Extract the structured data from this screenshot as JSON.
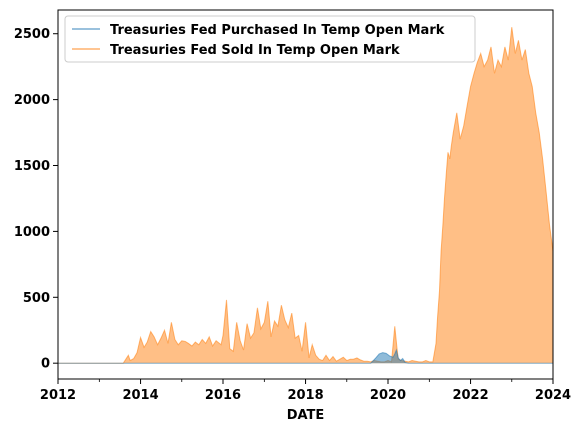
{
  "chart_data": {
    "type": "area",
    "xlabel": "DATE",
    "ylabel": "",
    "xlim": [
      "2012-01-01",
      "2024-01-01"
    ],
    "ylim": [
      -120,
      2680
    ],
    "x_ticks": [
      "2012",
      "2014",
      "2016",
      "2018",
      "2020",
      "2022",
      "2024"
    ],
    "y_ticks": [
      0,
      500,
      1000,
      1500,
      2000,
      2500
    ],
    "grid": false,
    "legend_position": "top-left",
    "series": [
      {
        "name": "Treasuries Fed Purchased In Temp Open Mark",
        "color": "#1f77b4",
        "x": [
          "2012-01-01",
          "2019-08-01",
          "2019-09-15",
          "2019-10-15",
          "2019-11-15",
          "2019-12-15",
          "2020-01-15",
          "2020-02-15",
          "2020-03-01",
          "2020-03-15",
          "2020-04-01",
          "2020-04-20",
          "2020-05-10",
          "2020-06-01",
          "2020-07-01",
          "2024-01-01"
        ],
        "values": [
          0,
          0,
          40,
          70,
          80,
          75,
          55,
          45,
          70,
          100,
          40,
          20,
          35,
          5,
          0,
          0
        ]
      },
      {
        "name": "Treasuries Fed Sold In Temp Open Mark",
        "color": "#ff7f0e",
        "x": [
          "2012-01-01",
          "2013-08-01",
          "2013-09-15",
          "2013-10-01",
          "2013-11-01",
          "2013-12-01",
          "2014-01-01",
          "2014-02-01",
          "2014-03-01",
          "2014-04-01",
          "2014-05-01",
          "2014-06-01",
          "2014-07-01",
          "2014-08-01",
          "2014-09-01",
          "2014-10-01",
          "2014-11-01",
          "2014-12-01",
          "2015-01-01",
          "2015-02-01",
          "2015-03-01",
          "2015-04-01",
          "2015-05-01",
          "2015-06-01",
          "2015-07-01",
          "2015-08-01",
          "2015-09-01",
          "2015-10-01",
          "2015-11-01",
          "2015-12-15",
          "2016-01-01",
          "2016-02-01",
          "2016-03-01",
          "2016-04-01",
          "2016-05-01",
          "2016-06-01",
          "2016-07-01",
          "2016-08-01",
          "2016-09-01",
          "2016-10-01",
          "2016-11-01",
          "2016-12-01",
          "2017-01-01",
          "2017-02-01",
          "2017-03-01",
          "2017-04-01",
          "2017-05-01",
          "2017-06-01",
          "2017-07-01",
          "2017-08-01",
          "2017-09-01",
          "2017-10-01",
          "2017-11-01",
          "2017-12-01",
          "2018-01-01",
          "2018-02-01",
          "2018-03-01",
          "2018-04-01",
          "2018-05-01",
          "2018-06-01",
          "2018-07-01",
          "2018-08-01",
          "2018-09-01",
          "2018-10-01",
          "2018-11-01",
          "2018-12-01",
          "2019-01-01",
          "2019-02-01",
          "2019-03-01",
          "2019-04-01",
          "2019-05-01",
          "2019-06-01",
          "2019-07-01",
          "2019-08-01",
          "2019-09-01",
          "2019-10-01",
          "2019-11-01",
          "2019-12-01",
          "2020-01-01",
          "2020-02-01",
          "2020-03-01",
          "2020-03-20",
          "2020-04-01",
          "2020-05-01",
          "2020-06-01",
          "2020-07-01",
          "2020-08-01",
          "2020-09-01",
          "2020-10-01",
          "2020-11-01",
          "2020-12-01",
          "2021-01-01",
          "2021-02-01",
          "2021-03-01",
          "2021-03-15",
          "2021-04-01",
          "2021-04-15",
          "2021-05-01",
          "2021-05-15",
          "2021-06-01",
          "2021-06-15",
          "2021-07-01",
          "2021-07-15",
          "2021-08-01",
          "2021-09-01",
          "2021-10-01",
          "2021-11-01",
          "2021-12-01",
          "2022-01-01",
          "2022-02-01",
          "2022-03-01",
          "2022-04-01",
          "2022-05-01",
          "2022-06-01",
          "2022-07-01",
          "2022-08-01",
          "2022-09-01",
          "2022-10-01",
          "2022-11-01",
          "2022-12-01",
          "2023-01-01",
          "2023-02-01",
          "2023-03-01",
          "2023-04-01",
          "2023-05-01",
          "2023-06-01",
          "2023-07-01",
          "2023-08-01",
          "2023-09-01",
          "2023-10-01",
          "2023-11-01",
          "2023-12-01",
          "2024-01-01"
        ],
        "values": [
          0,
          0,
          60,
          20,
          35,
          80,
          195,
          120,
          160,
          240,
          200,
          140,
          190,
          250,
          150,
          310,
          180,
          140,
          170,
          165,
          150,
          130,
          160,
          140,
          180,
          150,
          200,
          130,
          170,
          140,
          210,
          480,
          110,
          90,
          310,
          170,
          100,
          300,
          190,
          230,
          420,
          260,
          310,
          470,
          200,
          320,
          280,
          440,
          330,
          270,
          380,
          190,
          210,
          90,
          310,
          40,
          140,
          60,
          30,
          20,
          60,
          20,
          50,
          15,
          30,
          45,
          20,
          30,
          30,
          40,
          25,
          15,
          15,
          10,
          20,
          15,
          10,
          10,
          20,
          10,
          280,
          120,
          30,
          20,
          15,
          10,
          20,
          15,
          10,
          10,
          20,
          10,
          10,
          150,
          350,
          550,
          850,
          1050,
          1250,
          1450,
          1600,
          1550,
          1650,
          1750,
          1900,
          1700,
          1800,
          1950,
          2100,
          2200,
          2280,
          2350,
          2250,
          2300,
          2400,
          2200,
          2300,
          2250,
          2400,
          2300,
          2550,
          2350,
          2450,
          2300,
          2380,
          2200,
          2100,
          1900,
          1750,
          1550,
          1300,
          1050,
          850
        ]
      }
    ]
  }
}
